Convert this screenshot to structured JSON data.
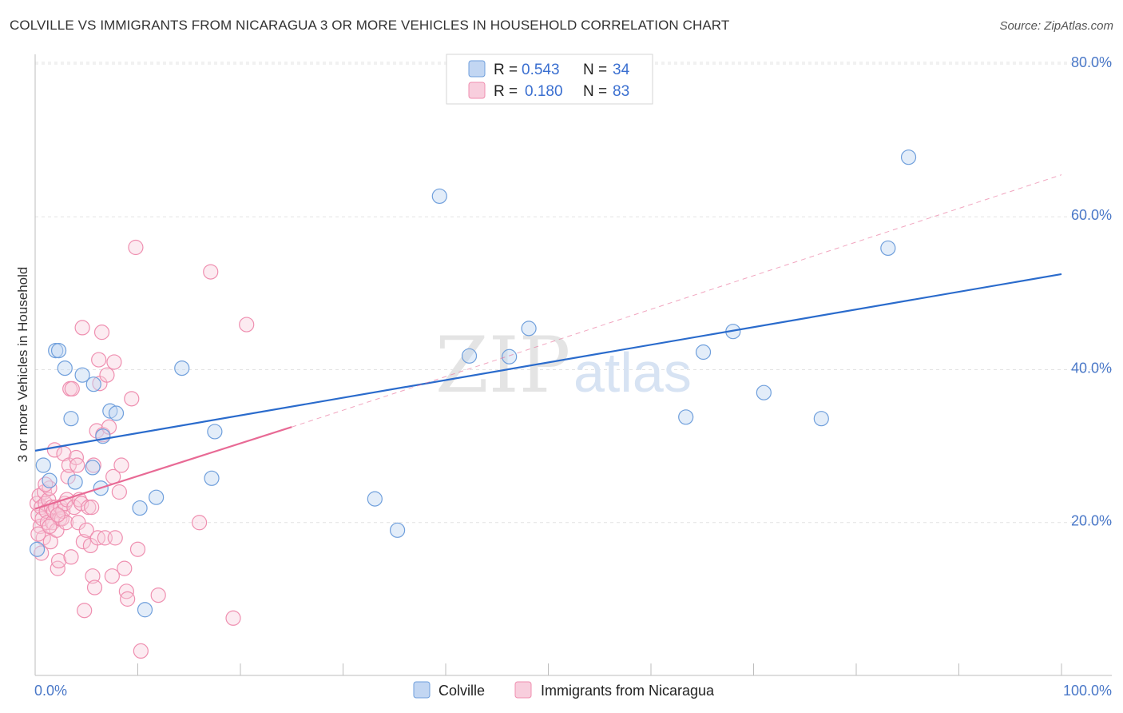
{
  "title": "COLVILLE VS IMMIGRANTS FROM NICARAGUA 3 OR MORE VEHICLES IN HOUSEHOLD CORRELATION CHART",
  "source": "Source: ZipAtlas.com",
  "colors": {
    "blue": "#6f9fdc",
    "blue_fill": "#c2d6f2",
    "blue_line": "#2a6bcc",
    "pink": "#ef8fb0",
    "pink_fill": "#f8cedd",
    "pink_line": "#e86a95",
    "tick_text": "#4a78c8"
  },
  "legend": {
    "rows": [
      {
        "r_label": "R =",
        "r_value": "0.543",
        "n_label": "N =",
        "n_value": "34"
      },
      {
        "r_label": "R =",
        "r_value": "0.180",
        "n_label": "N =",
        "n_value": "83"
      }
    ]
  },
  "bottom_legend": [
    "Colville",
    "Immigrants from Nicaragua"
  ],
  "watermark": {
    "zip": "ZIP",
    "atlas": "atlas"
  },
  "chart_data": {
    "type": "scatter",
    "title": "COLVILLE VS IMMIGRANTS FROM NICARAGUA 3 OR MORE VEHICLES IN HOUSEHOLD CORRELATION CHART",
    "xlabel": "",
    "ylabel": "3 or more Vehicles in Household",
    "xlim": [
      0,
      100
    ],
    "ylim": [
      0,
      80
    ],
    "x_tick_labels": [
      "0.0%",
      "100.0%"
    ],
    "y_ticks": [
      20,
      40,
      60,
      80
    ],
    "y_tick_labels": [
      "20.0%",
      "40.0%",
      "60.0%",
      "80.0%"
    ],
    "grid": true,
    "series": [
      {
        "name": "Colville",
        "color": "#6f9fdc",
        "trend": {
          "x0": 0,
          "y0": 29.4,
          "x1": 100,
          "y1": 52.5,
          "style": "solid"
        },
        "points": [
          [
            0.2,
            16.5
          ],
          [
            0.8,
            27.5
          ],
          [
            1.4,
            25.5
          ],
          [
            2.0,
            42.5
          ],
          [
            2.3,
            42.5
          ],
          [
            2.9,
            40.2
          ],
          [
            3.5,
            33.6
          ],
          [
            3.9,
            25.3
          ],
          [
            4.6,
            39.3
          ],
          [
            5.6,
            27.2
          ],
          [
            5.7,
            38.1
          ],
          [
            6.4,
            24.5
          ],
          [
            6.6,
            31.3
          ],
          [
            7.3,
            34.6
          ],
          [
            7.9,
            34.3
          ],
          [
            10.2,
            21.9
          ],
          [
            11.8,
            23.3
          ],
          [
            14.3,
            40.2
          ],
          [
            17.2,
            25.8
          ],
          [
            17.5,
            31.9
          ],
          [
            33.1,
            23.1
          ],
          [
            35.3,
            19.0
          ],
          [
            39.4,
            62.7
          ],
          [
            42.3,
            41.8
          ],
          [
            46.2,
            41.7
          ],
          [
            48.1,
            45.4
          ],
          [
            63.4,
            33.8
          ],
          [
            65.1,
            42.3
          ],
          [
            68.0,
            45.0
          ],
          [
            71.0,
            37.0
          ],
          [
            76.6,
            33.6
          ],
          [
            83.1,
            55.9
          ],
          [
            85.1,
            67.8
          ],
          [
            10.7,
            8.6
          ]
        ]
      },
      {
        "name": "Immigrants from Nicaragua",
        "color": "#ef8fb0",
        "trend": {
          "x0": 0,
          "y0": 21.8,
          "x1": 25,
          "y1": 32.5,
          "style": "solid",
          "extension": {
            "x1": 100,
            "y1": 65.5,
            "style": "dashed"
          }
        },
        "points": [
          [
            0.2,
            22.5
          ],
          [
            0.3,
            21.0
          ],
          [
            0.4,
            23.5
          ],
          [
            0.5,
            19.5
          ],
          [
            0.6,
            22.0
          ],
          [
            0.7,
            20.5
          ],
          [
            0.8,
            18.0
          ],
          [
            0.9,
            24.0
          ],
          [
            1.0,
            22.5
          ],
          [
            1.1,
            21.5
          ],
          [
            1.2,
            20.0
          ],
          [
            1.3,
            23.0
          ],
          [
            1.4,
            24.5
          ],
          [
            1.5,
            17.5
          ],
          [
            1.6,
            22.0
          ],
          [
            1.7,
            20.0
          ],
          [
            1.8,
            21.5
          ],
          [
            1.9,
            29.5
          ],
          [
            2.0,
            22.0
          ],
          [
            2.1,
            19.0
          ],
          [
            2.2,
            14.0
          ],
          [
            2.3,
            15.0
          ],
          [
            2.4,
            20.5
          ],
          [
            2.5,
            22.0
          ],
          [
            2.6,
            20.5
          ],
          [
            2.7,
            21.5
          ],
          [
            2.8,
            29.0
          ],
          [
            2.9,
            22.5
          ],
          [
            3.0,
            20.0
          ],
          [
            3.1,
            23.0
          ],
          [
            3.2,
            26.0
          ],
          [
            3.3,
            27.5
          ],
          [
            3.4,
            37.5
          ],
          [
            3.5,
            15.5
          ],
          [
            3.6,
            37.5
          ],
          [
            3.8,
            22.0
          ],
          [
            4.0,
            28.5
          ],
          [
            4.1,
            27.5
          ],
          [
            4.2,
            20.0
          ],
          [
            4.3,
            23.0
          ],
          [
            4.5,
            22.5
          ],
          [
            4.6,
            45.5
          ],
          [
            4.7,
            17.5
          ],
          [
            4.8,
            8.5
          ],
          [
            5.0,
            19.0
          ],
          [
            5.2,
            22.0
          ],
          [
            5.4,
            17.0
          ],
          [
            5.5,
            22.0
          ],
          [
            5.6,
            13.0
          ],
          [
            5.7,
            27.5
          ],
          [
            5.8,
            11.5
          ],
          [
            6.0,
            32.0
          ],
          [
            6.1,
            18.0
          ],
          [
            6.2,
            41.3
          ],
          [
            6.3,
            38.2
          ],
          [
            6.5,
            44.9
          ],
          [
            6.6,
            31.5
          ],
          [
            6.8,
            18.0
          ],
          [
            7.0,
            39.3
          ],
          [
            7.2,
            32.5
          ],
          [
            7.5,
            13.0
          ],
          [
            7.6,
            26.0
          ],
          [
            7.7,
            41.0
          ],
          [
            7.8,
            18.0
          ],
          [
            8.2,
            24.0
          ],
          [
            8.4,
            27.5
          ],
          [
            8.7,
            14.0
          ],
          [
            8.9,
            11.0
          ],
          [
            9.0,
            10.0
          ],
          [
            9.4,
            36.2
          ],
          [
            9.8,
            56.0
          ],
          [
            10.0,
            16.5
          ],
          [
            10.3,
            3.2
          ],
          [
            12.0,
            10.5
          ],
          [
            16.0,
            20.0
          ],
          [
            17.1,
            52.8
          ],
          [
            19.3,
            7.5
          ],
          [
            20.6,
            45.9
          ],
          [
            0.3,
            18.5
          ],
          [
            0.6,
            16.0
          ],
          [
            1.0,
            25.0
          ],
          [
            1.4,
            19.5
          ],
          [
            2.2,
            21.0
          ]
        ]
      }
    ]
  }
}
